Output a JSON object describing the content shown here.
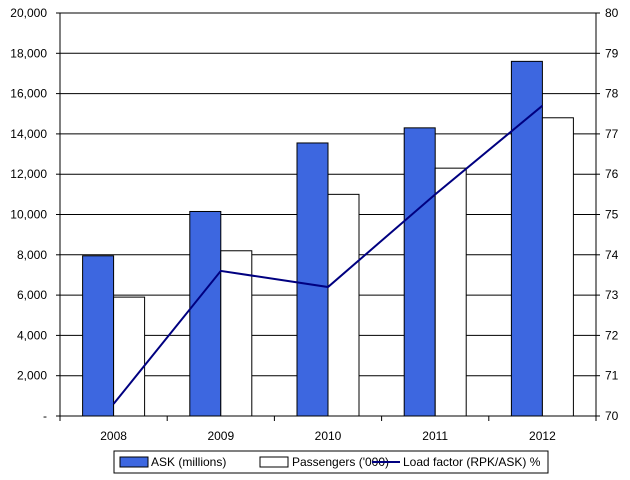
{
  "chart_data": {
    "type": "bar",
    "categories": [
      "2008",
      "2009",
      "2010",
      "2011",
      "2012"
    ],
    "series": [
      {
        "name": "ASK (millions)",
        "type": "bar",
        "axis": "left",
        "color": "#3d67e0",
        "values": [
          7950,
          10150,
          13550,
          14300,
          17600
        ]
      },
      {
        "name": "Passengers ('000)",
        "type": "bar",
        "axis": "left",
        "color": "#ffffff",
        "values": [
          5900,
          8200,
          11000,
          12300,
          14800
        ]
      },
      {
        "name": "Load factor (RPK/ASK) %",
        "type": "line",
        "axis": "right",
        "color": "#000080",
        "values": [
          70.3,
          73.6,
          73.2,
          75.5,
          77.7
        ]
      }
    ],
    "y_left": {
      "ylim": [
        0,
        20000
      ],
      "tick_labels": [
        "-",
        "2,000",
        "4,000",
        "6,000",
        "8,000",
        "10,000",
        "12,000",
        "14,000",
        "16,000",
        "18,000",
        "20,000"
      ]
    },
    "y_right": {
      "ylim": [
        70,
        80
      ],
      "tick_labels": [
        "70",
        "71",
        "72",
        "73",
        "74",
        "75",
        "76",
        "77",
        "78",
        "79",
        "80"
      ]
    },
    "grid": true,
    "legend_position": "bottom"
  }
}
